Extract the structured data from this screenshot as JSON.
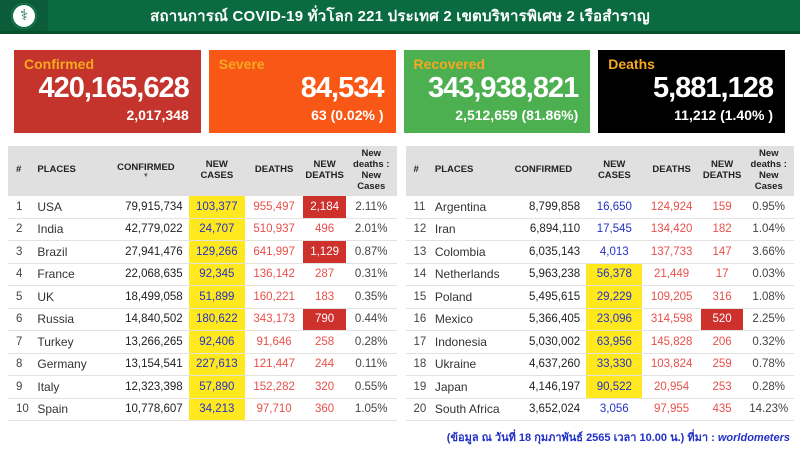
{
  "header": {
    "title": "สถานการณ์ COVID-19 ทั่วโลก 221 ประเทศ 2 เขตบริหารพิเศษ 2 เรือสำราญ",
    "logo_icon": "medical-caduceus-icon"
  },
  "colors": {
    "header_green": "#0b6b40",
    "confirmed_bg": "#c5342c",
    "severe_bg": "#f95716",
    "recovered_bg": "#4caf50",
    "deaths_bg": "#000000",
    "card_label": "#f6a81f",
    "highlight_yellow": "#ffe81e",
    "highlight_red": "#ce312c",
    "new_cases_blue": "#2433c5",
    "deaths_red": "#e8504a",
    "footer_blue": "#2130c8"
  },
  "cards": [
    {
      "key": "confirmed",
      "label": "Confirmed",
      "value": "420,165,628",
      "sub": "2,017,348",
      "bg": "#c5342c"
    },
    {
      "key": "severe",
      "label": "Severe",
      "value": "84,534",
      "sub": "63 (0.02% )",
      "bg": "#f95716"
    },
    {
      "key": "recovered",
      "label": "Recovered",
      "value": "343,938,821",
      "sub": "2,512,659 (81.86%)",
      "bg": "#4caf50"
    },
    {
      "key": "deaths",
      "label": "Deaths",
      "value": "5,881,128",
      "sub": "11,212 (1.40% )",
      "bg": "#000000"
    }
  ],
  "table": {
    "columns": [
      {
        "key": "rank",
        "label": "#"
      },
      {
        "key": "places",
        "label": "PLACES"
      },
      {
        "key": "confirmed",
        "label": "CONFIRMED",
        "sort": "▼"
      },
      {
        "key": "new_cases",
        "label": "NEW CASES"
      },
      {
        "key": "deaths",
        "label": "DEATHS"
      },
      {
        "key": "new_deaths",
        "label": "NEW DEATHS"
      },
      {
        "key": "ratio",
        "label": "New deaths : New Cases"
      }
    ],
    "left_rows": [
      {
        "rank": "1",
        "place": "USA",
        "confirmed": "79,915,734",
        "new_cases": "103,377",
        "nc_hl": true,
        "deaths": "955,497",
        "new_deaths": "2,184",
        "nd_hl": true,
        "ratio": "2.11%"
      },
      {
        "rank": "2",
        "place": "India",
        "confirmed": "42,779,022",
        "new_cases": "24,707",
        "nc_hl": true,
        "deaths": "510,937",
        "new_deaths": "496",
        "nd_hl": false,
        "ratio": "2.01%"
      },
      {
        "rank": "3",
        "place": "Brazil",
        "confirmed": "27,941,476",
        "new_cases": "129,266",
        "nc_hl": true,
        "deaths": "641,997",
        "new_deaths": "1,129",
        "nd_hl": true,
        "ratio": "0.87%"
      },
      {
        "rank": "4",
        "place": "France",
        "confirmed": "22,068,635",
        "new_cases": "92,345",
        "nc_hl": true,
        "deaths": "136,142",
        "new_deaths": "287",
        "nd_hl": false,
        "ratio": "0.31%"
      },
      {
        "rank": "5",
        "place": "UK",
        "confirmed": "18,499,058",
        "new_cases": "51,899",
        "nc_hl": true,
        "deaths": "160,221",
        "new_deaths": "183",
        "nd_hl": false,
        "ratio": "0.35%"
      },
      {
        "rank": "6",
        "place": "Russia",
        "confirmed": "14,840,502",
        "new_cases": "180,622",
        "nc_hl": true,
        "deaths": "343,173",
        "new_deaths": "790",
        "nd_hl": true,
        "ratio": "0.44%"
      },
      {
        "rank": "7",
        "place": "Turkey",
        "confirmed": "13,266,265",
        "new_cases": "92,406",
        "nc_hl": true,
        "deaths": "91,646",
        "new_deaths": "258",
        "nd_hl": false,
        "ratio": "0.28%"
      },
      {
        "rank": "8",
        "place": "Germany",
        "confirmed": "13,154,541",
        "new_cases": "227,613",
        "nc_hl": true,
        "deaths": "121,447",
        "new_deaths": "244",
        "nd_hl": false,
        "ratio": "0.11%"
      },
      {
        "rank": "9",
        "place": "Italy",
        "confirmed": "12,323,398",
        "new_cases": "57,890",
        "nc_hl": true,
        "deaths": "152,282",
        "new_deaths": "320",
        "nd_hl": false,
        "ratio": "0.55%"
      },
      {
        "rank": "10",
        "place": "Spain",
        "confirmed": "10,778,607",
        "new_cases": "34,213",
        "nc_hl": true,
        "deaths": "97,710",
        "new_deaths": "360",
        "nd_hl": false,
        "ratio": "1.05%"
      }
    ],
    "right_rows": [
      {
        "rank": "11",
        "place": "Argentina",
        "confirmed": "8,799,858",
        "new_cases": "16,650",
        "nc_hl": false,
        "deaths": "124,924",
        "new_deaths": "159",
        "nd_hl": false,
        "ratio": "0.95%"
      },
      {
        "rank": "12",
        "place": "Iran",
        "confirmed": "6,894,110",
        "new_cases": "17,545",
        "nc_hl": false,
        "deaths": "134,420",
        "new_deaths": "182",
        "nd_hl": false,
        "ratio": "1.04%"
      },
      {
        "rank": "13",
        "place": "Colombia",
        "confirmed": "6,035,143",
        "new_cases": "4,013",
        "nc_hl": false,
        "deaths": "137,733",
        "new_deaths": "147",
        "nd_hl": false,
        "ratio": "3.66%"
      },
      {
        "rank": "14",
        "place": "Netherlands",
        "confirmed": "5,963,238",
        "new_cases": "56,378",
        "nc_hl": true,
        "deaths": "21,449",
        "new_deaths": "17",
        "nd_hl": false,
        "ratio": "0.03%"
      },
      {
        "rank": "15",
        "place": "Poland",
        "confirmed": "5,495,615",
        "new_cases": "29,229",
        "nc_hl": true,
        "deaths": "109,205",
        "new_deaths": "316",
        "nd_hl": false,
        "ratio": "1.08%"
      },
      {
        "rank": "16",
        "place": "Mexico",
        "confirmed": "5,366,405",
        "new_cases": "23,096",
        "nc_hl": true,
        "deaths": "314,598",
        "new_deaths": "520",
        "nd_hl": true,
        "ratio": "2.25%"
      },
      {
        "rank": "17",
        "place": "Indonesia",
        "confirmed": "5,030,002",
        "new_cases": "63,956",
        "nc_hl": true,
        "deaths": "145,828",
        "new_deaths": "206",
        "nd_hl": false,
        "ratio": "0.32%"
      },
      {
        "rank": "18",
        "place": "Ukraine",
        "confirmed": "4,637,260",
        "new_cases": "33,330",
        "nc_hl": true,
        "deaths": "103,824",
        "new_deaths": "259",
        "nd_hl": false,
        "ratio": "0.78%"
      },
      {
        "rank": "19",
        "place": "Japan",
        "confirmed": "4,146,197",
        "new_cases": "90,522",
        "nc_hl": true,
        "deaths": "20,954",
        "new_deaths": "253",
        "nd_hl": false,
        "ratio": "0.28%"
      },
      {
        "rank": "20",
        "place": "South Africa",
        "confirmed": "3,652,024",
        "new_cases": "3,056",
        "nc_hl": false,
        "deaths": "97,955",
        "new_deaths": "435",
        "nd_hl": false,
        "ratio": "14.23%"
      }
    ]
  },
  "footer": {
    "text": "(ข้อมูล ณ วันที่ 18 กุมภาพันธ์ 2565 เวลา 10.00 น.) ที่มา :",
    "source": "worldometers"
  }
}
